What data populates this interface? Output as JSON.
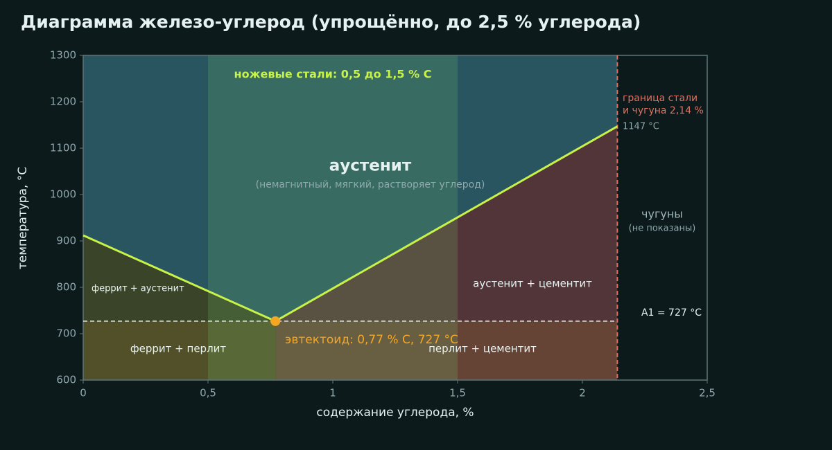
{
  "chart_data": {
    "type": "line",
    "title": "Диаграмма железо-углерод (упрощённо, до 2,5 % углерода)",
    "x_label": "содержание углерода, %",
    "y_label": "температура, °C",
    "xlim": [
      0,
      2.5
    ],
    "ylim": [
      600,
      1300
    ],
    "xticks": [
      0,
      {
        "value": 0.5,
        "label": "0,5"
      },
      1,
      {
        "value": 1.5,
        "label": "1,5"
      },
      2,
      {
        "value": 2.5,
        "label": "2,5"
      }
    ],
    "yticks": [
      600,
      700,
      800,
      900,
      1000,
      1100,
      1200,
      1300
    ],
    "series": [
      {
        "color": "#c6f24a",
        "x": [
          0,
          0.77
        ],
        "values": [
          912,
          727
        ]
      },
      {
        "color": "#c6f24a",
        "x": [
          0.77,
          2.14
        ],
        "values": [
          727,
          1147
        ]
      }
    ],
    "eutectoid": {
      "x": 0.77,
      "y": 727,
      "color": "#f5a623",
      "label": "эвтектоид: 0,77 % C, 727 °C"
    },
    "a1": {
      "value": 727,
      "label": "A1 = 727 °C"
    },
    "boundary": {
      "x": 2.14,
      "color": "#e07060",
      "label_lines": [
        "граница стали",
        "и чугуна 2,14 %"
      ],
      "temp_label": "1147 °C"
    },
    "band": {
      "range": [
        0.5,
        1.5
      ],
      "label": "ножевые стали: 0,5 до 1,5 % C"
    },
    "regions": [
      {
        "label": "аустенит",
        "note": "(немагнитный, мягкий, растворяет углерод)"
      },
      {
        "label": "феррит + аустенит"
      },
      {
        "label": "феррит + перлит"
      },
      {
        "label": "аустенит + цементит"
      },
      {
        "label": "перлит + цементит"
      },
      {
        "label": "чугуны",
        "note": "(не показаны)"
      }
    ]
  }
}
